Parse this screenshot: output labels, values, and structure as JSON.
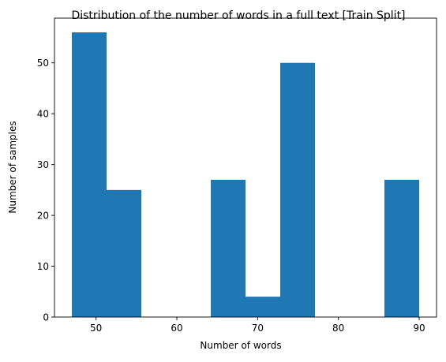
{
  "chart_data": {
    "type": "bar",
    "title": "Distribution of the number of words in a full text [Train Split]",
    "xlabel": "Number of words",
    "ylabel": "Number of samples",
    "bin_edges": [
      47,
      51.3,
      55.6,
      59.9,
      64.2,
      68.5,
      72.8,
      77.1,
      81.4,
      85.7,
      90
    ],
    "values": [
      56,
      25,
      0,
      0,
      27,
      4,
      50,
      0,
      0,
      27
    ],
    "xlim": [
      44.85,
      92.15
    ],
    "ylim": [
      0,
      58.8
    ],
    "xticks": [
      50,
      60,
      70,
      80,
      90
    ],
    "yticks": [
      0,
      10,
      20,
      30,
      40,
      50
    ],
    "grid": false,
    "bar_color": "#1f77b4"
  }
}
